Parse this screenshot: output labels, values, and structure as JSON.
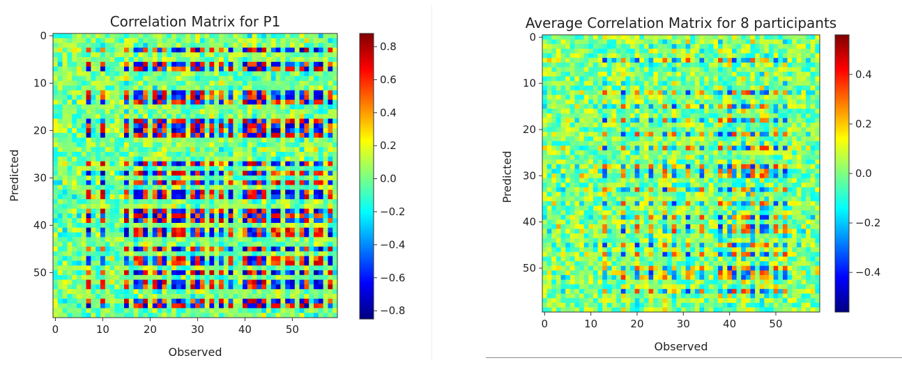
{
  "chart_data": [
    {
      "type": "heatmap",
      "title": "Correlation Matrix for P1",
      "xlabel": "Observed",
      "ylabel": "Predicted",
      "n_rows": 60,
      "n_cols": 60,
      "x_ticks": [
        0,
        10,
        20,
        30,
        40,
        50
      ],
      "y_ticks": [
        0,
        10,
        20,
        30,
        40,
        50
      ],
      "colormap": "jet",
      "vmin": -0.85,
      "vmax": 0.88,
      "colorbar_ticks": [
        0.8,
        0.6,
        0.4,
        0.2,
        0.0,
        -0.2,
        -0.4,
        -0.6,
        -0.8
      ],
      "colorbar_tick_labels": [
        "0.8",
        "0.6",
        "0.4",
        "0.2",
        "0.0",
        "−0.2",
        "−0.4",
        "−0.6",
        "−0.8"
      ],
      "strong_rows": [
        3,
        6,
        7,
        12,
        13,
        14,
        18,
        19,
        20,
        21,
        27,
        29,
        31,
        33,
        34,
        37,
        38,
        39,
        41,
        42,
        45,
        47,
        48,
        50,
        52,
        53,
        56,
        57
      ],
      "strong_cols": [
        7,
        10,
        15,
        17,
        18,
        19,
        21,
        22,
        23,
        25,
        26,
        27,
        29,
        30,
        31,
        33,
        35,
        37,
        40,
        41,
        42,
        43,
        44,
        46,
        47,
        49,
        50,
        52,
        53,
        55,
        56,
        58
      ]
    },
    {
      "type": "heatmap",
      "title": "Average Correlation Matrix for 8 participants",
      "xlabel": "Observed",
      "ylabel": "Predicted",
      "n_rows": 60,
      "n_cols": 60,
      "x_ticks": [
        0,
        10,
        20,
        30,
        40,
        50
      ],
      "y_ticks": [
        0,
        10,
        20,
        30,
        40,
        50
      ],
      "colormap": "jet",
      "vmin": -0.56,
      "vmax": 0.56,
      "colorbar_ticks": [
        0.4,
        0.2,
        0.0,
        -0.2,
        -0.4
      ],
      "colorbar_tick_labels": [
        "0.4",
        "0.2",
        "0.0",
        "−0.2",
        "−0.4"
      ],
      "strong_rows": [
        5,
        12,
        15,
        18,
        21,
        24,
        28,
        29,
        30,
        33,
        36,
        39,
        41,
        42,
        45,
        47,
        50,
        51,
        52,
        55
      ],
      "strong_cols": [
        13,
        17,
        20,
        23,
        26,
        28,
        31,
        34,
        38,
        40,
        41,
        43,
        44,
        45,
        47,
        48,
        50,
        52
      ]
    }
  ]
}
